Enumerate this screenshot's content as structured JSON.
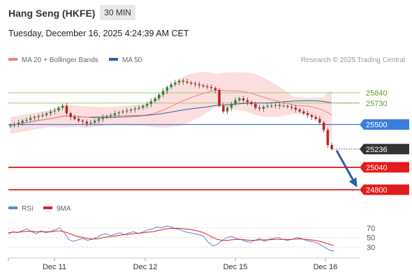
{
  "header": {
    "instrument": "Hang Seng (HKFE)",
    "timeframe": "30 MIN",
    "datetime": "Tuesday, December 16, 2025 4:24:39 AM CET",
    "credit": "Research © 2025 Trading Central"
  },
  "legend": {
    "ma20_label": "MA 20 + Bollinger Bands",
    "ma20_color": "#f08080",
    "ma50_label": "MA 50",
    "ma50_color": "#2e5fa8"
  },
  "rsi_legend": {
    "rsi_label": "RSI",
    "rsi_color": "#5b84d6",
    "ma9_label": "9MA",
    "ma9_color": "#e02020"
  },
  "colors": {
    "bull": "#2e8b2e",
    "bear": "#c41e1e",
    "resistance": "#9acd6a",
    "pivot": "#3b7ddd",
    "support": "#e41b1b",
    "current": "#333333",
    "arrow": "#2d5ea8",
    "bollinger_fill": "#fbd3d3"
  },
  "chart_data": {
    "type": "candlestick",
    "instrument": "Hang Seng (HKFE)",
    "timeframe": "30 MIN",
    "x_tick_labels": [
      "Dec 11",
      "Dec 12",
      "Dec 15",
      "Dec 16"
    ],
    "price_levels": [
      {
        "label": "25840",
        "value": 25840,
        "kind": "resistance"
      },
      {
        "label": "25730",
        "value": 25730,
        "kind": "resistance"
      },
      {
        "label": "25500",
        "value": 25500,
        "kind": "pivot"
      },
      {
        "label": "25236",
        "value": 25236,
        "kind": "current"
      },
      {
        "label": "25040",
        "value": 25040,
        "kind": "support"
      },
      {
        "label": "24800",
        "value": 24800,
        "kind": "support"
      }
    ],
    "price_range": [
      24800,
      26050
    ],
    "candles_close_approx": [
      25490,
      25500,
      25520,
      25540,
      25550,
      25570,
      25580,
      25590,
      25600,
      25620,
      25640,
      25650,
      25680,
      25700,
      25620,
      25580,
      25560,
      25540,
      25530,
      25510,
      25520,
      25540,
      25560,
      25580,
      25590,
      25600,
      25620,
      25630,
      25640,
      25650,
      25660,
      25670,
      25680,
      25700,
      25720,
      25750,
      25780,
      25820,
      25860,
      25900,
      25930,
      25950,
      25970,
      25960,
      25950,
      25940,
      25930,
      25920,
      25910,
      25900,
      25890,
      25870,
      25700,
      25640,
      25680,
      25720,
      25760,
      25780,
      25760,
      25740,
      25720,
      25680,
      25670,
      25690,
      25700,
      25700,
      25710,
      25700,
      25700,
      25690,
      25680,
      25660,
      25640,
      25620,
      25600,
      25580,
      25560,
      25520,
      25440,
      25280,
      25236
    ],
    "rsi": {
      "levels": [
        70,
        50,
        30
      ],
      "range": [
        10,
        90
      ],
      "rsi_values_approx": [
        58,
        62,
        60,
        64,
        68,
        62,
        58,
        64,
        60,
        62,
        66,
        70,
        60,
        46,
        42,
        45,
        48,
        44,
        46,
        50,
        56,
        58,
        54,
        57,
        60,
        56,
        60,
        62,
        58,
        62,
        66,
        68,
        72,
        70,
        74,
        72,
        68,
        66,
        62,
        60,
        58,
        56,
        52,
        40,
        32,
        36,
        44,
        50,
        52,
        48,
        46,
        42,
        40,
        44,
        48,
        42,
        46,
        48,
        50,
        46,
        44,
        46,
        50,
        48,
        44,
        42,
        40,
        36,
        30,
        24,
        22
      ],
      "ma9_values_approx": [
        60,
        61,
        61,
        62,
        63,
        63,
        62,
        62,
        62,
        62,
        63,
        64,
        62,
        59,
        55,
        52,
        50,
        48,
        47,
        47,
        49,
        51,
        52,
        53,
        55,
        56,
        57,
        58,
        59,
        60,
        61,
        62,
        64,
        66,
        68,
        69,
        69,
        69,
        68,
        67,
        65,
        63,
        60,
        55,
        50,
        46,
        44,
        44,
        45,
        46,
        46,
        45,
        44,
        44,
        45,
        45,
        45,
        46,
        46,
        46,
        46,
        46,
        47,
        47,
        46,
        45,
        44,
        42,
        39,
        36,
        33
      ]
    }
  }
}
